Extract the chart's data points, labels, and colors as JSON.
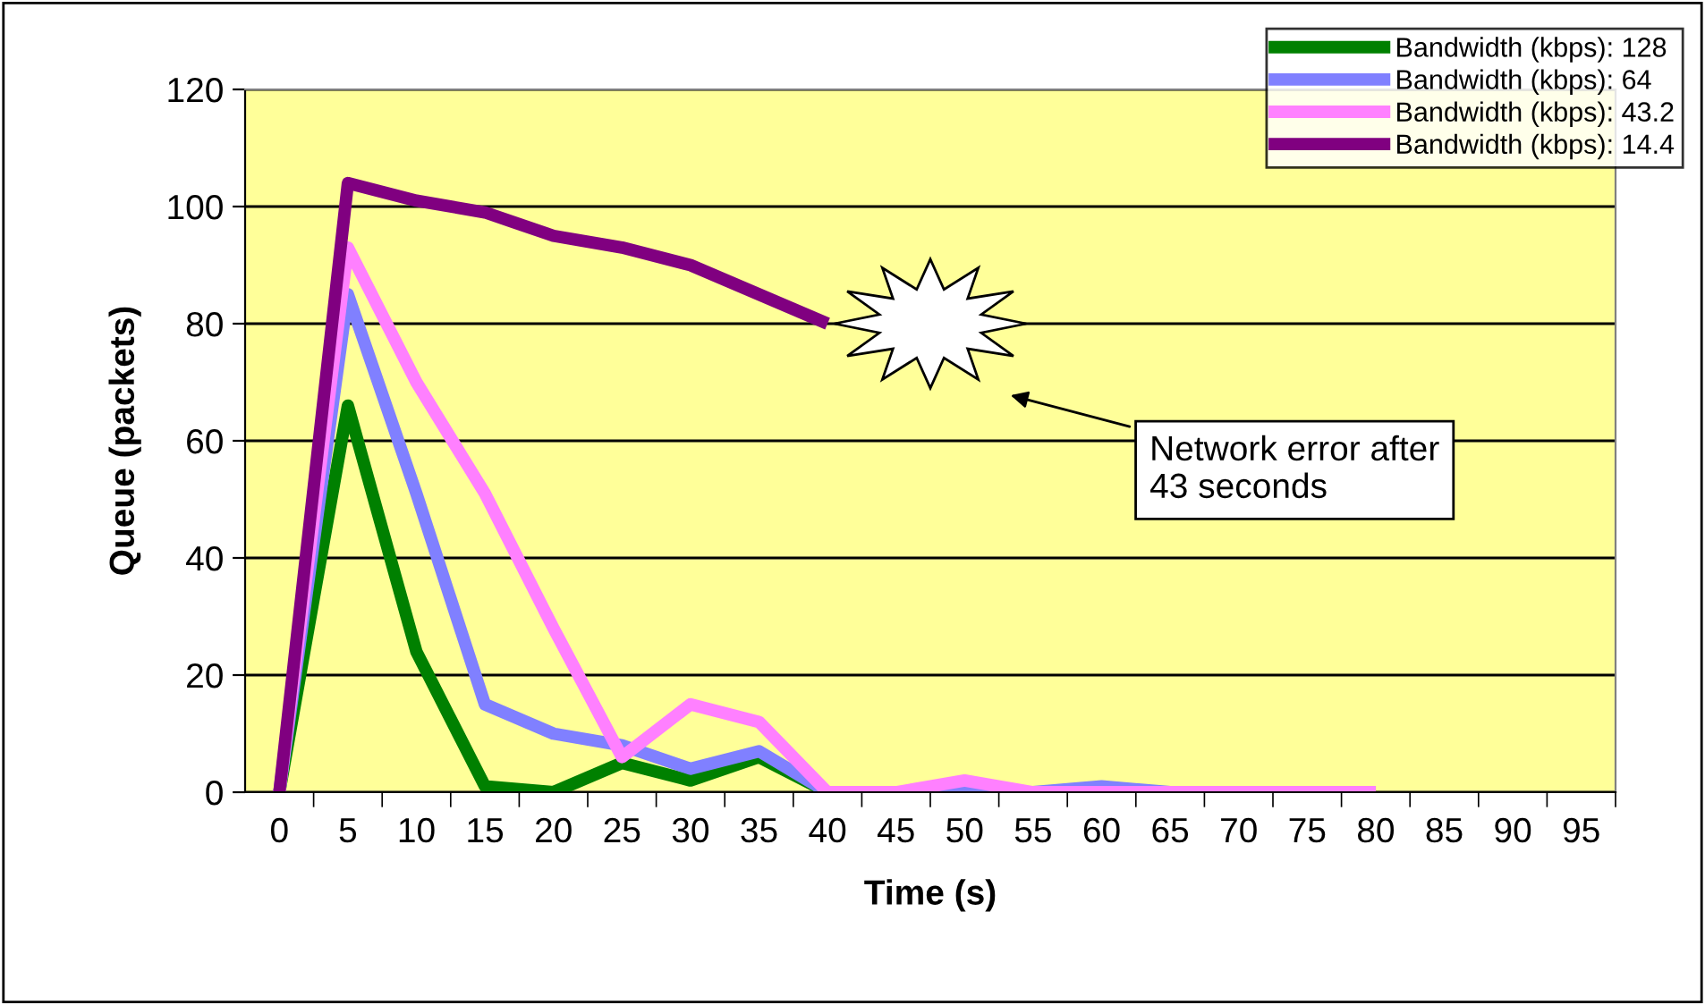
{
  "chart_data": {
    "type": "line",
    "xlabel": "Time (s)",
    "ylabel": "Queue (packets)",
    "categories": [
      "0",
      "5",
      "10",
      "15",
      "20",
      "25",
      "30",
      "35",
      "40",
      "45",
      "50",
      "55",
      "60",
      "65",
      "70",
      "75",
      "80",
      "85",
      "90",
      "95"
    ],
    "series": [
      {
        "name": "Bandwidth (kbps): 128",
        "color": "#008000",
        "values": [
          0,
          66,
          24,
          1,
          0,
          5,
          2,
          6,
          0,
          0,
          null,
          null,
          null,
          null,
          null,
          null,
          null,
          null,
          null,
          null
        ]
      },
      {
        "name": "Bandwidth (kbps): 64",
        "color": "#8080ff",
        "values": [
          0,
          85,
          51,
          15,
          10,
          8,
          4,
          7,
          0,
          0,
          0,
          0,
          1,
          0,
          0,
          0,
          0,
          null,
          null,
          null
        ]
      },
      {
        "name": "Bandwidth (kbps): 43.2",
        "color": "#ff80ff",
        "values": [
          0,
          93,
          70,
          51,
          28,
          6,
          15,
          12,
          0,
          0,
          2,
          0,
          0,
          0,
          0,
          0,
          0,
          null,
          null,
          null
        ]
      },
      {
        "name": "Bandwidth (kbps): 14.4",
        "color": "#800080",
        "values": [
          0,
          104,
          101,
          99,
          95,
          93,
          90,
          85,
          80,
          null,
          null,
          null,
          null,
          null,
          null,
          null,
          null,
          null,
          null,
          null
        ]
      }
    ],
    "ylim": [
      0,
      120
    ],
    "yticks": [
      0,
      20,
      40,
      60,
      80,
      100,
      120
    ],
    "grid": "y",
    "legend": "top right",
    "marker": "none",
    "line_style": "solid",
    "annotations": [
      "Network error after\n43 seconds"
    ]
  }
}
